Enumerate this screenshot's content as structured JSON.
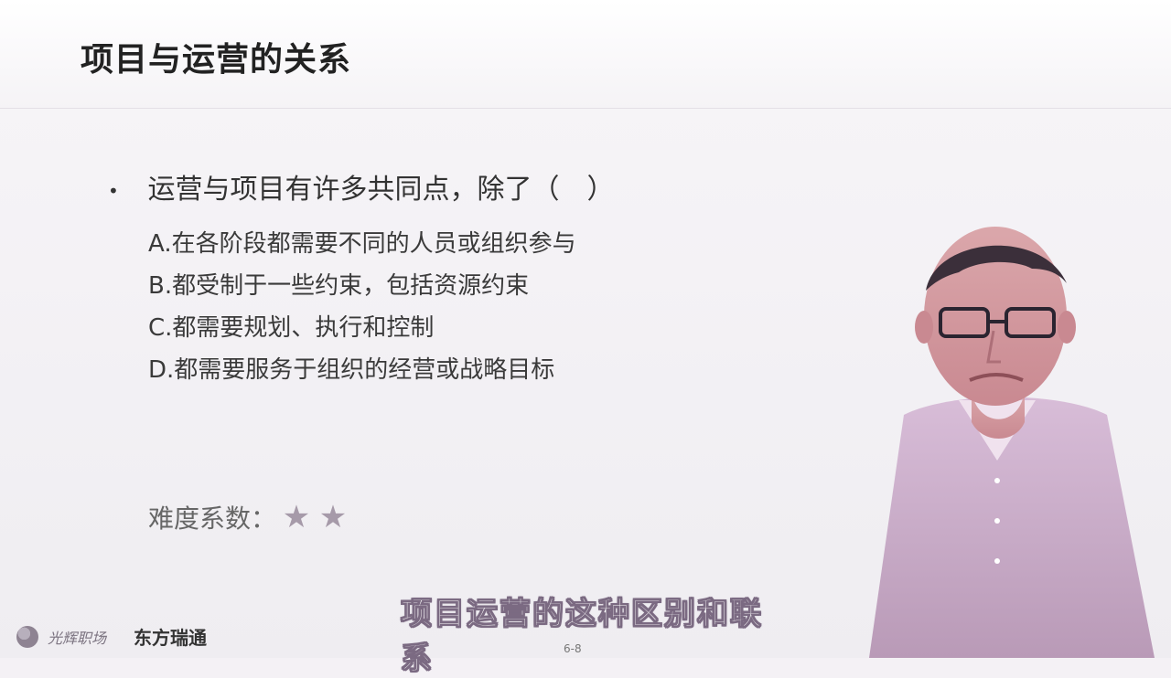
{
  "slide": {
    "title": "项目与运营的关系",
    "question": "运营与项目有许多共同点，除了（　）",
    "options": [
      "A.在各阶段都需要不同的人员或组织参与",
      "B.都受制于一些约束，包括资源约束",
      "C.都需要规划、执行和控制",
      "D.都需要服务于组织的经营或战略目标"
    ],
    "difficulty_label": "难度系数：",
    "difficulty_stars": 2,
    "subtitle": "项目运营的这种区别和联系",
    "footer_brand_1": "光辉职场",
    "footer_brand_2": "东方瑞通",
    "page_number": "6-8"
  },
  "colors": {
    "background": "#f4f1f5",
    "subtitle_outline": "#7b6a82",
    "star": "#a69aa9"
  },
  "icons": {
    "bullet": "bullet-dot",
    "star": "star-icon",
    "logo": "brand-logo-icon"
  }
}
